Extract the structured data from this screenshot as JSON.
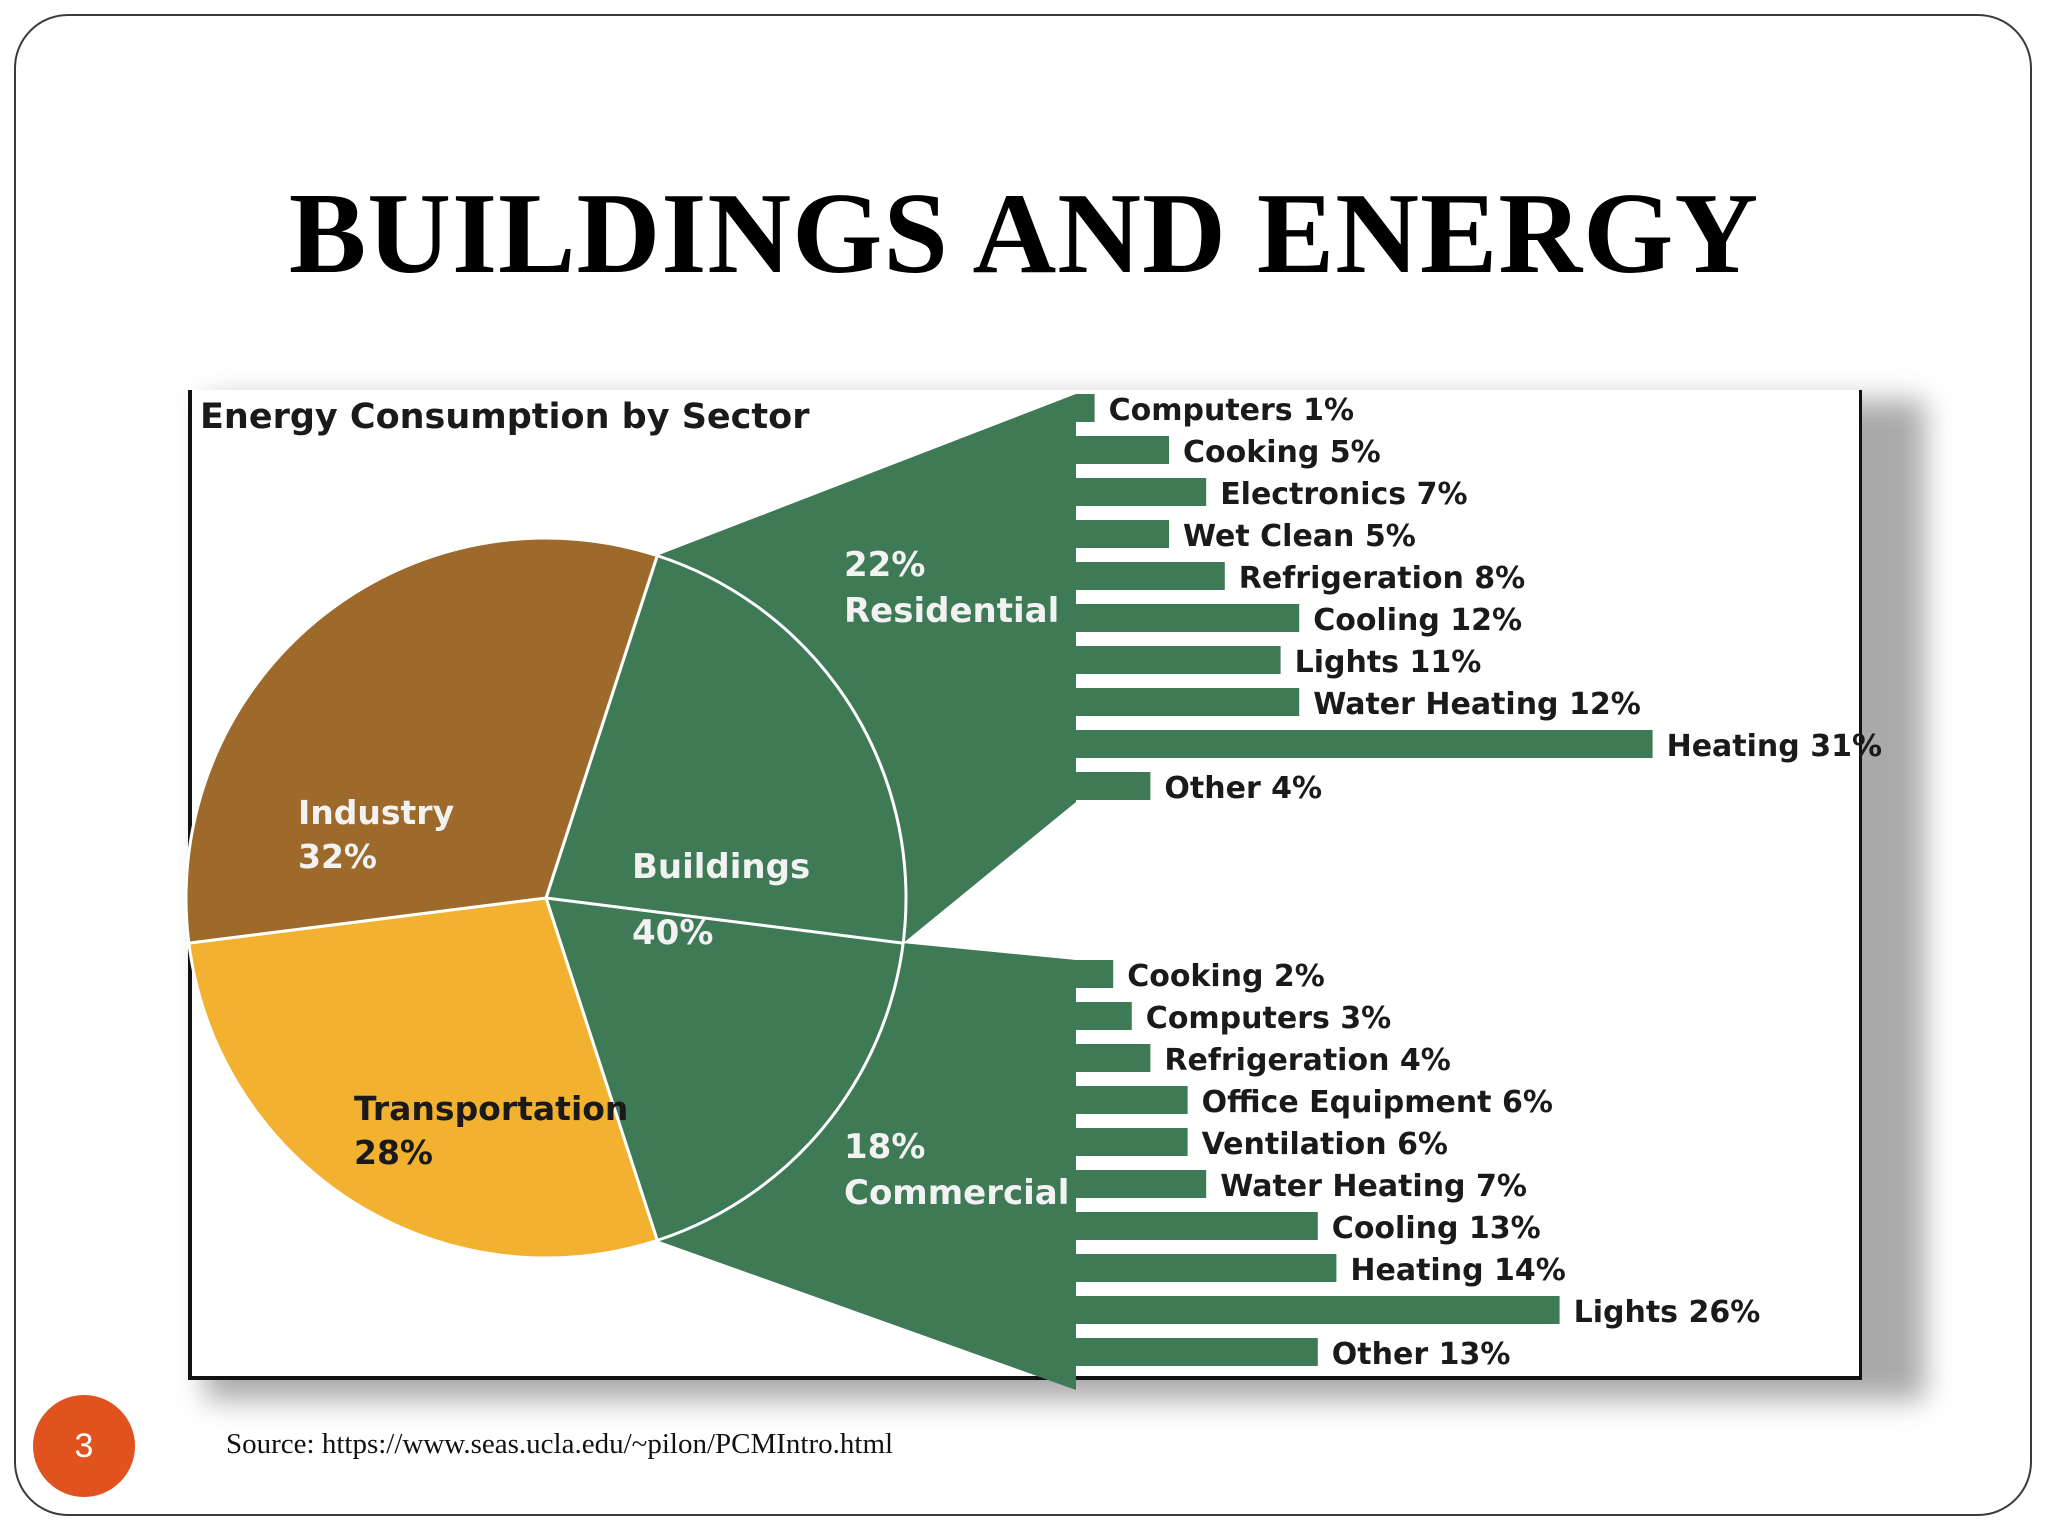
{
  "slide": {
    "title": "BUILDINGS AND ENERGY",
    "page_number": "3",
    "source": "Source: https://www.seas.ucla.edu/~pilon/PCMIntro.html"
  },
  "colors": {
    "industry": "#9d6a2c",
    "transportation": "#f2b22f",
    "buildings": "#3f7a56",
    "text_dark": "#1a1a1a",
    "text_light": "#f2f2f2"
  },
  "chart_data": [
    {
      "type": "pie",
      "title": "Energy Consumption by Sector",
      "slices": [
        {
          "name": "Industry",
          "value": 32,
          "value_label": "32%",
          "color": "#9d6a2c"
        },
        {
          "name": "Transportation",
          "value": 28,
          "value_label": "28%",
          "color": "#f2b22f"
        },
        {
          "name": "Buildings",
          "value": 40,
          "value_label": "40%",
          "color": "#3f7a56"
        }
      ],
      "sub_split": [
        {
          "name": "Residential",
          "value": 22,
          "value_label": "22%"
        },
        {
          "name": "Commercial",
          "value": 18,
          "value_label": "18%"
        }
      ]
    },
    {
      "type": "bar",
      "group": "Residential",
      "orientation": "horizontal",
      "categories": [
        "Computers",
        "Cooking",
        "Electronics",
        "Wet Clean",
        "Refrigeration",
        "Cooling",
        "Lights",
        "Water Heating",
        "Heating",
        "Other"
      ],
      "values": [
        1,
        5,
        7,
        5,
        8,
        12,
        11,
        12,
        31,
        4
      ],
      "labels": [
        "Computers 1%",
        "Cooking 5%",
        "Electronics 7%",
        "Wet Clean 5%",
        "Refrigeration 8%",
        "Cooling 12%",
        "Lights 11%",
        "Water Heating 12%",
        "Heating 31%",
        "Other 4%"
      ],
      "unit": "%"
    },
    {
      "type": "bar",
      "group": "Commercial",
      "orientation": "horizontal",
      "categories": [
        "Cooking",
        "Computers",
        "Refrigeration",
        "Office Equipment",
        "Ventilation",
        "Water Heating",
        "Cooling",
        "Heating",
        "Lights",
        "Other"
      ],
      "values": [
        2,
        3,
        4,
        6,
        6,
        7,
        13,
        14,
        26,
        13
      ],
      "labels": [
        "Cooking 2%",
        "Computers 3%",
        "Refrigeration 4%",
        "Office Equipment 6%",
        "Ventilation 6%",
        "Water Heating 7%",
        "Cooling 13%",
        "Heating 14%",
        "Lights 26%",
        "Other 13%"
      ],
      "unit": "%"
    }
  ]
}
